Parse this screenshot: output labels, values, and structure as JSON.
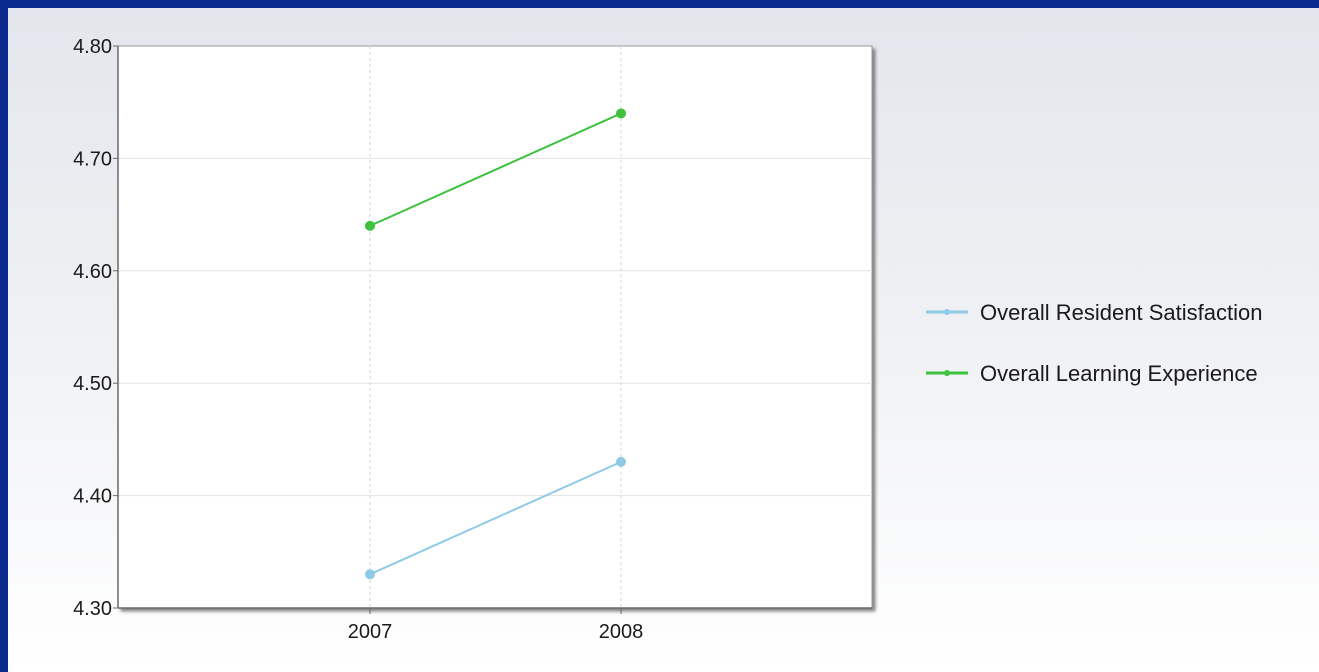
{
  "chart_data": {
    "type": "line",
    "x": [
      "2007",
      "2008"
    ],
    "ylim": [
      4.3,
      4.8
    ],
    "yticks": [
      "4.80",
      "4.70",
      "4.60",
      "4.50",
      "4.40",
      "4.30"
    ],
    "yticks_values": [
      4.8,
      4.7,
      4.6,
      4.5,
      4.4,
      4.3
    ],
    "grid": true,
    "legend_position": "right",
    "series": [
      {
        "name": "Overall Resident Satisfaction",
        "values": [
          4.33,
          4.43
        ],
        "color": "#8ecae6"
      },
      {
        "name": "Overall Learning Experience",
        "values": [
          4.64,
          4.74
        ],
        "color": "#3cc23c"
      }
    ]
  }
}
